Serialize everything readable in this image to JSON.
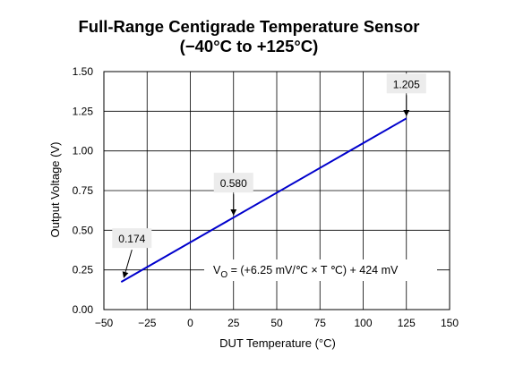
{
  "chart_data": {
    "type": "line",
    "title": "Full-Range Centigrade Temperature Sensor",
    "subtitle": "(−40°C to +125°C)",
    "xlabel": "DUT Temperature (°C)",
    "ylabel": "Output Voltage (V)",
    "xlim": [
      -50,
      150
    ],
    "ylim": [
      0,
      1.5
    ],
    "x_ticks": [
      -50,
      -25,
      0,
      25,
      50,
      75,
      100,
      125,
      150
    ],
    "x_tick_labels": [
      "−50",
      "−25",
      "0",
      "25",
      "50",
      "75",
      "100",
      "125",
      "150"
    ],
    "y_ticks": [
      0,
      0.25,
      0.5,
      0.75,
      1.0,
      1.25,
      1.5
    ],
    "y_tick_labels": [
      "0.00",
      "0.25",
      "0.50",
      "0.75",
      "1.00",
      "1.25",
      "1.50"
    ],
    "grid": true,
    "series": [
      {
        "x": [
          -40,
          125
        ],
        "y": [
          0.174,
          1.205
        ]
      }
    ],
    "annotations": [
      {
        "text": "0.174",
        "x": -40,
        "y": 0.174
      },
      {
        "text": "0.580",
        "x": 25,
        "y": 0.58
      },
      {
        "text": "1.205",
        "x": 125,
        "y": 1.205
      }
    ],
    "equation": {
      "prefix": "V",
      "subscript": "O",
      "body": " = (+6.25 mV/℃ × T ℃) + 424 mV"
    },
    "colors": {
      "line": "#0000cc",
      "grid": "#000000"
    }
  }
}
